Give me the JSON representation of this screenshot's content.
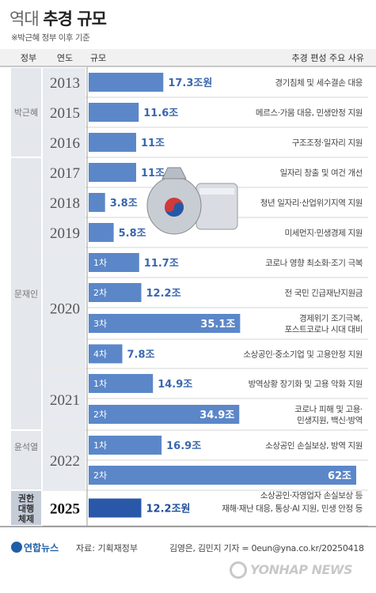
{
  "title_light": "역대",
  "title_bold": "추경 규모",
  "note": "※박근혜 정부 이후 기준",
  "headers": {
    "gov": "정부",
    "year": "연도",
    "scale": "규모",
    "reason": "추경 편성 주요 사유"
  },
  "governments": [
    {
      "name": "박근혜"
    },
    {
      "name": "문재인"
    },
    {
      "name": "윤석열"
    },
    {
      "name": "권한대행체제",
      "lines": [
        "권한",
        "대행",
        "체제"
      ]
    }
  ],
  "colors": {
    "bar": "#5b87c9",
    "bar_2025": "#2a58a8",
    "year_col": "#e7eaef",
    "gov_col": "#e4e7ec",
    "gov_2025": "#c4ccd8"
  },
  "footer": {
    "logo": "연합뉴스",
    "source": "자료: 기획재정부",
    "credit": "김영은, 김민지 기자 = 0eun@yna.co.kr/20250418",
    "watermark": "YONHAP NEWS"
  },
  "chart_data": {
    "type": "bar",
    "unit": "조원",
    "xlim": [
      0,
      62
    ],
    "bars": [
      {
        "year": "2013",
        "round": "",
        "value": 17.3,
        "label": "17.3조원",
        "reason": [
          "경기침체 및 세수결손 대응"
        ]
      },
      {
        "year": "2015",
        "round": "",
        "value": 11.6,
        "label": "11.6조",
        "reason": [
          "메르스·가뭄 대응, 민생안정 지원"
        ]
      },
      {
        "year": "2016",
        "round": "",
        "value": 11,
        "label": "11조",
        "reason": [
          "구조조정·일자리 지원"
        ]
      },
      {
        "year": "2017",
        "round": "",
        "value": 11,
        "label": "11조",
        "reason": [
          "일자리 창출 및 여건 개선"
        ]
      },
      {
        "year": "2018",
        "round": "",
        "value": 3.8,
        "label": "3.8조",
        "reason": [
          "청년 일자리·산업위기지역 지원"
        ]
      },
      {
        "year": "2019",
        "round": "",
        "value": 5.8,
        "label": "5.8조",
        "reason": [
          "미세먼지·민생경제 지원"
        ]
      },
      {
        "year": "2020",
        "round": "1차",
        "value": 11.7,
        "label": "11.7조",
        "reason": [
          "코로나 영향 최소화·조기 극복"
        ]
      },
      {
        "year": "2020",
        "round": "2차",
        "value": 12.2,
        "label": "12.2조",
        "reason": [
          "전 국민 긴급재난지원금"
        ]
      },
      {
        "year": "2020",
        "round": "3차",
        "value": 35.1,
        "label": "35.1조",
        "reason": [
          "경제위기 조기극복,",
          "포스트코로나 시대 대비"
        ]
      },
      {
        "year": "2020",
        "round": "4차",
        "value": 7.8,
        "label": "7.8조",
        "reason": [
          "소상공인·중소기업 및 고용안정 지원"
        ]
      },
      {
        "year": "2021",
        "round": "1차",
        "value": 14.9,
        "label": "14.9조",
        "reason": [
          "방역상황 장기화 및 고용 악화 지원"
        ]
      },
      {
        "year": "2021",
        "round": "2차",
        "value": 34.9,
        "label": "34.9조",
        "reason": [
          "코로나 피해 및 고용·",
          "민생지원, 백신·방역"
        ]
      },
      {
        "year": "2022",
        "round": "1차",
        "value": 16.9,
        "label": "16.9조",
        "reason": [
          "소상공인 손실보상, 방역 지원"
        ]
      },
      {
        "year": "2022",
        "round": "2차",
        "value": 62,
        "label": "62조",
        "reason": [
          "소상공인·자영업자 손실보상 등"
        ]
      },
      {
        "year": "2025",
        "round": "",
        "value": 12.2,
        "label": "12.2조원",
        "reason": [
          "재해·재난 대응, 통상·AI 지원, 민생 안정 등"
        ]
      }
    ]
  }
}
